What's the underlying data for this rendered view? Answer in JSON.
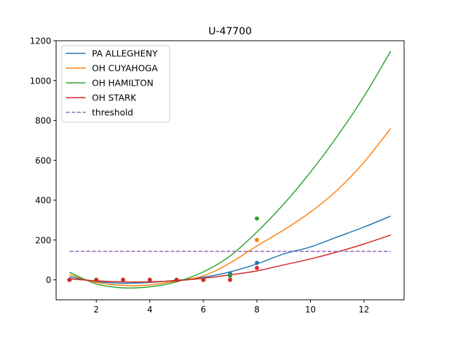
{
  "chart_data": {
    "type": "line",
    "title": "U-47700",
    "xlabel": "",
    "ylabel": "",
    "xlim": [
      0.5,
      13.5
    ],
    "ylim": [
      -100,
      1200
    ],
    "xticks": [
      2,
      4,
      6,
      8,
      10,
      12
    ],
    "yticks": [
      0,
      200,
      400,
      600,
      800,
      1000,
      1200
    ],
    "grid": false,
    "legend_position": "top-left",
    "series": [
      {
        "name": "PA ALLEGHENY",
        "color": "#1f77b4",
        "curve_x": [
          1,
          2,
          3,
          4,
          5,
          6,
          7,
          8,
          9,
          10,
          11,
          12,
          13
        ],
        "curve_y": [
          15,
          -8,
          -17,
          -13,
          -2,
          13,
          40,
          80,
          130,
          165,
          215,
          265,
          320
        ],
        "points_x": [
          1,
          2,
          3,
          4,
          5,
          6,
          7,
          8
        ],
        "points_y": [
          0,
          0,
          0,
          0,
          0,
          0,
          30,
          85
        ]
      },
      {
        "name": "OH CUYAHOGA",
        "color": "#ff7f0e",
        "curve_x": [
          1,
          2,
          3,
          4,
          5,
          6,
          7,
          8,
          9,
          10,
          11,
          12,
          13
        ],
        "curve_y": [
          25,
          -12,
          -28,
          -25,
          -6,
          20,
          85,
          170,
          250,
          340,
          450,
          590,
          760
        ],
        "points_x": [
          1,
          2,
          3,
          4,
          5,
          6,
          7,
          8
        ],
        "points_y": [
          0,
          0,
          0,
          0,
          0,
          0,
          20,
          200
        ]
      },
      {
        "name": "OH HAMILTON",
        "color": "#2ca02c",
        "curve_x": [
          1,
          2,
          3,
          4,
          5,
          6,
          7,
          8,
          9,
          10,
          11,
          12,
          13
        ],
        "curve_y": [
          38,
          -20,
          -40,
          -35,
          -10,
          40,
          120,
          240,
          380,
          540,
          720,
          920,
          1148
        ],
        "points_x": [
          1,
          2,
          3,
          4,
          5,
          6,
          7,
          8
        ],
        "points_y": [
          0,
          0,
          0,
          0,
          0,
          0,
          20,
          308
        ]
      },
      {
        "name": "OH STARK",
        "color": "#d62728",
        "curve_x": [
          1,
          2,
          3,
          4,
          5,
          6,
          7,
          8,
          9,
          10,
          11,
          12,
          13
        ],
        "curve_y": [
          5,
          -5,
          -10,
          -10,
          -4,
          8,
          25,
          45,
          75,
          105,
          140,
          180,
          225
        ],
        "points_x": [
          1,
          2,
          3,
          4,
          5,
          6,
          7,
          8
        ],
        "points_y": [
          0,
          0,
          0,
          0,
          0,
          0,
          0,
          60
        ]
      }
    ],
    "threshold": {
      "name": "threshold",
      "color": "#9467bd",
      "style": "dashed",
      "value": 143,
      "x_range": [
        1,
        13
      ]
    }
  }
}
